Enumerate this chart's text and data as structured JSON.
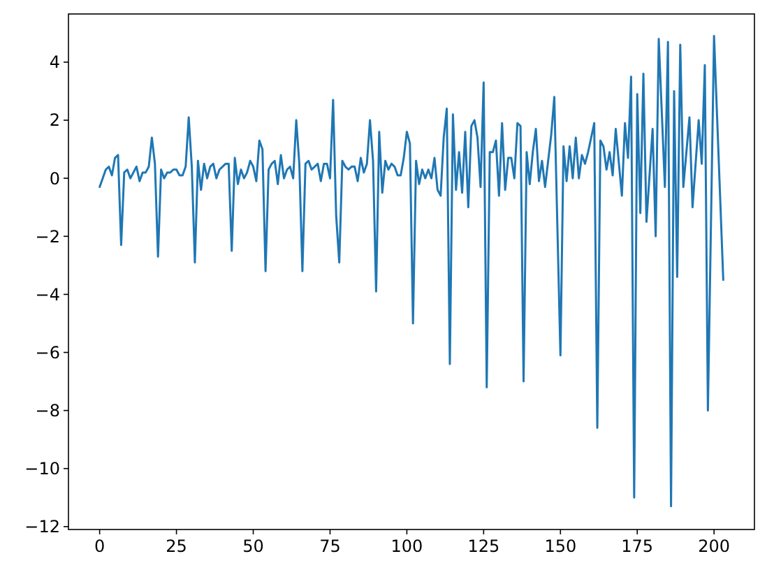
{
  "chart_data": {
    "type": "line",
    "xlim": [
      -10.15,
      213.15
    ],
    "ylim": [
      -12.1,
      5.66
    ],
    "xticks": [
      0,
      25,
      50,
      75,
      100,
      125,
      150,
      175,
      200
    ],
    "yticks": [
      -12,
      -10,
      -8,
      -6,
      -4,
      -2,
      0,
      2,
      4
    ],
    "x": [
      0,
      1,
      2,
      3,
      4,
      5,
      6,
      7,
      8,
      9,
      10,
      11,
      12,
      13,
      14,
      15,
      16,
      17,
      18,
      19,
      20,
      21,
      22,
      23,
      24,
      25,
      26,
      27,
      28,
      29,
      30,
      31,
      32,
      33,
      34,
      35,
      36,
      37,
      38,
      39,
      40,
      41,
      42,
      43,
      44,
      45,
      46,
      47,
      48,
      49,
      50,
      51,
      52,
      53,
      54,
      55,
      56,
      57,
      58,
      59,
      60,
      61,
      62,
      63,
      64,
      65,
      66,
      67,
      68,
      69,
      70,
      71,
      72,
      73,
      74,
      75,
      76,
      77,
      78,
      79,
      80,
      81,
      82,
      83,
      84,
      85,
      86,
      87,
      88,
      89,
      90,
      91,
      92,
      93,
      94,
      95,
      96,
      97,
      98,
      99,
      100,
      101,
      102,
      103,
      104,
      105,
      106,
      107,
      108,
      109,
      110,
      111,
      112,
      113,
      114,
      115,
      116,
      117,
      118,
      119,
      120,
      121,
      122,
      123,
      124,
      125,
      126,
      127,
      128,
      129,
      130,
      131,
      132,
      133,
      134,
      135,
      136,
      137,
      138,
      139,
      140,
      141,
      142,
      143,
      144,
      145,
      146,
      147,
      148,
      150,
      151,
      152,
      153,
      154,
      155,
      156,
      157,
      158,
      159,
      161,
      162,
      163,
      164,
      165,
      166,
      167,
      168,
      170,
      171,
      172,
      173,
      174,
      175,
      176,
      177,
      178,
      180,
      181,
      182,
      184,
      185,
      186,
      187,
      188,
      189,
      190,
      192,
      193,
      195,
      196,
      197,
      198,
      200,
      203
    ],
    "series": [
      {
        "color": "#1f77b4",
        "values": [
          -0.3,
          0.0,
          0.3,
          0.4,
          0.1,
          0.7,
          0.8,
          -2.3,
          0.2,
          0.3,
          0.0,
          0.2,
          0.4,
          -0.1,
          0.2,
          0.2,
          0.4,
          1.4,
          0.5,
          -2.7,
          0.3,
          0.0,
          0.2,
          0.2,
          0.3,
          0.3,
          0.1,
          0.1,
          0.4,
          2.1,
          0.4,
          -2.9,
          0.6,
          -0.4,
          0.5,
          0.0,
          0.4,
          0.5,
          0.0,
          0.3,
          0.4,
          0.5,
          0.5,
          -2.5,
          0.7,
          -0.2,
          0.3,
          0.0,
          0.2,
          0.6,
          0.4,
          -0.1,
          1.3,
          1.0,
          -3.2,
          0.3,
          0.5,
          0.6,
          -0.2,
          0.8,
          0.0,
          0.3,
          0.4,
          0.0,
          2.0,
          0.5,
          -3.2,
          0.5,
          0.6,
          0.3,
          0.4,
          0.5,
          -0.1,
          0.5,
          0.5,
          0.0,
          2.7,
          -1.3,
          -2.9,
          0.6,
          0.4,
          0.3,
          0.4,
          0.4,
          -0.1,
          0.7,
          0.2,
          0.5,
          2.0,
          0.6,
          -3.9,
          1.6,
          -0.5,
          0.6,
          0.3,
          0.5,
          0.4,
          0.1,
          0.1,
          0.7,
          1.6,
          1.2,
          -5.0,
          0.6,
          -0.2,
          0.3,
          0.0,
          0.3,
          0.0,
          0.7,
          -0.4,
          -0.6,
          1.4,
          2.4,
          -6.4,
          2.2,
          -0.4,
          0.9,
          -0.5,
          1.6,
          -1.0,
          1.8,
          2.0,
          1.4,
          -0.3,
          3.3,
          -7.2,
          0.9,
          0.9,
          1.3,
          -0.6,
          1.9,
          -0.4,
          0.7,
          0.7,
          0.0,
          1.9,
          1.8,
          -7.0,
          0.9,
          -0.2,
          0.9,
          1.7,
          -0.1,
          0.6,
          -0.3,
          0.6,
          1.5,
          2.8,
          -6.1,
          1.1,
          -0.1,
          1.1,
          0.0,
          1.4,
          0.0,
          0.8,
          0.5,
          0.9,
          1.9,
          -8.6,
          1.3,
          1.1,
          0.3,
          0.9,
          0.1,
          1.7,
          -0.6,
          1.9,
          0.7,
          3.5,
          -11.0,
          2.9,
          -1.2,
          3.6,
          -1.5,
          1.7,
          -2.0,
          4.8,
          -0.3,
          4.7,
          -11.3,
          3.0,
          -3.4,
          4.6,
          -0.3,
          2.1,
          -1.0,
          2.0,
          0.5,
          3.9,
          -8.0,
          4.9,
          -3.5
        ]
      }
    ]
  }
}
